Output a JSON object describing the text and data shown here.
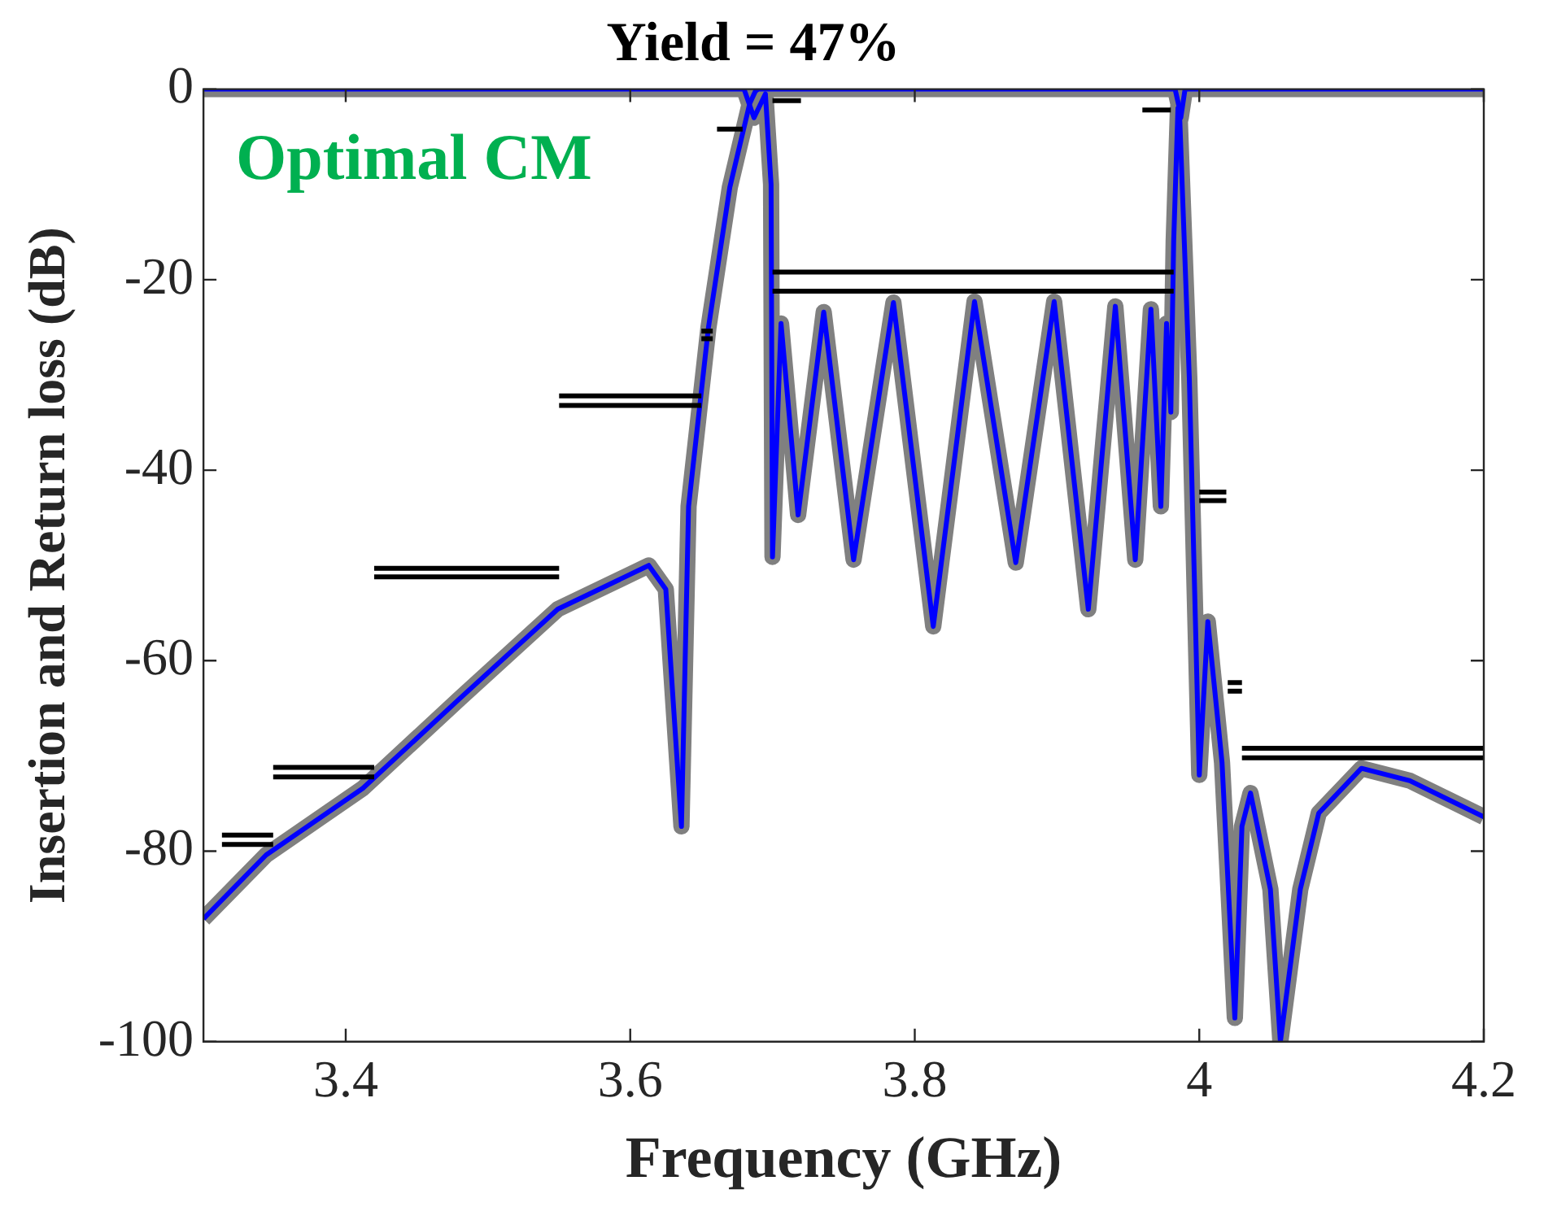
{
  "chart_data": {
    "type": "line",
    "title": "Yield = 47%",
    "xlabel": "Frequency (GHz)",
    "ylabel": "Insertion and Return loss (dB)",
    "annotations": [
      "Optimal CM"
    ],
    "xlim": [
      3.3,
      4.2
    ],
    "xticks": [
      3.4,
      3.6,
      3.8,
      4,
      4.2
    ],
    "ylim": [
      -100,
      0
    ],
    "yticks": [
      0,
      -20,
      -40,
      -60,
      -80,
      -100
    ],
    "grid": false,
    "legend": false,
    "marker": "none",
    "line_style": "solid",
    "series": [
      {
        "color": "#808080",
        "x": [
          3.3,
          3.344,
          3.412,
          3.48,
          3.549,
          3.613,
          3.625,
          3.636,
          3.641,
          3.655,
          3.67,
          3.684,
          3.688,
          3.69,
          3.983,
          3.986,
          3.993,
          4.0,
          4.006,
          4.016,
          4.025,
          4.03,
          4.036,
          4.05,
          4.057,
          4.071,
          4.084,
          4.114,
          4.148,
          4.2
        ],
        "values": [
          -87.1,
          -80.4,
          -73.4,
          -64,
          -54.6,
          -50,
          -52.5,
          -77.4,
          -43.8,
          -25,
          -10.3,
          -1.5,
          -0.2,
          0,
          0,
          -2,
          -30.4,
          -72,
          -55.9,
          -70.7,
          -97.5,
          -77.4,
          -73.9,
          -84,
          -100,
          -84,
          -76,
          -71.3,
          -72.6,
          -76.4
        ]
      },
      {
        "color": "#808080",
        "x": [
          3.3,
          3.68,
          3.687,
          3.695,
          3.699,
          3.7,
          3.706,
          3.718,
          3.736,
          3.757,
          3.785,
          3.813,
          3.842,
          3.871,
          3.898,
          3.922,
          3.941,
          3.955,
          3.966,
          3.973,
          3.977,
          3.98,
          3.982,
          3.985,
          3.987,
          3.99,
          4.2
        ],
        "values": [
          0,
          0,
          -3,
          -0.5,
          -10,
          -49.1,
          -24.6,
          -44.7,
          -23.4,
          -49.4,
          -22.4,
          -56.4,
          -22.3,
          -49.7,
          -22.3,
          -54.6,
          -22.8,
          -49.4,
          -23.1,
          -43.8,
          -24.6,
          -33.9,
          -16,
          -2,
          -3,
          0,
          0
        ]
      },
      {
        "color": "#0000ff",
        "x": [
          3.3,
          3.344,
          3.412,
          3.48,
          3.549,
          3.613,
          3.625,
          3.636,
          3.641,
          3.655,
          3.67,
          3.684,
          3.688,
          3.69,
          3.983,
          3.986,
          3.993,
          4.0,
          4.006,
          4.016,
          4.025,
          4.03,
          4.036,
          4.05,
          4.057,
          4.071,
          4.084,
          4.114,
          4.148,
          4.2
        ],
        "values": [
          -87.1,
          -80.4,
          -73.4,
          -64,
          -54.6,
          -50,
          -52.5,
          -77.4,
          -43.8,
          -25,
          -10.3,
          -1.5,
          -0.2,
          0,
          0,
          -2,
          -30.4,
          -72,
          -55.9,
          -70.7,
          -97.5,
          -77.4,
          -73.9,
          -84,
          -100,
          -84,
          -76,
          -71.3,
          -72.6,
          -76.4
        ]
      },
      {
        "color": "#0000ff",
        "x": [
          3.3,
          3.68,
          3.687,
          3.695,
          3.699,
          3.7,
          3.706,
          3.718,
          3.736,
          3.757,
          3.785,
          3.813,
          3.842,
          3.871,
          3.898,
          3.922,
          3.941,
          3.955,
          3.966,
          3.973,
          3.977,
          3.98,
          3.982,
          3.985,
          3.987,
          3.99,
          4.2
        ],
        "values": [
          0,
          0,
          -3,
          -0.5,
          -10,
          -49.1,
          -24.6,
          -44.7,
          -23.4,
          -49.4,
          -22.4,
          -56.4,
          -22.3,
          -49.7,
          -22.3,
          -54.6,
          -22.8,
          -49.4,
          -23.1,
          -43.8,
          -24.6,
          -33.9,
          -16,
          -2,
          -3,
          0,
          0
        ]
      },
      {
        "color": "#000000",
        "x": [
          3.313,
          3.349
        ],
        "values": [
          -78.3,
          -78.3
        ]
      },
      {
        "color": "#000000",
        "x": [
          3.349,
          3.42
        ],
        "values": [
          -71.2,
          -71.2
        ]
      },
      {
        "color": "#000000",
        "x": [
          3.42,
          3.55
        ],
        "values": [
          -50.3,
          -50.3
        ]
      },
      {
        "color": "#000000",
        "x": [
          3.55,
          3.65
        ],
        "values": [
          -32.2,
          -32.2
        ]
      },
      {
        "color": "#000000",
        "x": [
          3.65,
          3.658
        ],
        "values": [
          -25.4,
          -25.4
        ]
      },
      {
        "color": "#000000",
        "x": [
          3.661,
          3.679
        ],
        "values": [
          -4.2,
          -4.2
        ]
      },
      {
        "color": "#000000",
        "x": [
          3.7,
          3.72
        ],
        "values": [
          -1.2,
          -1.2
        ]
      },
      {
        "color": "#000000",
        "x": [
          3.7,
          3.982
        ],
        "values": [
          -19.2,
          -19.2
        ]
      },
      {
        "color": "#000000",
        "x": [
          3.96,
          3.98
        ],
        "values": [
          -2.2,
          -2.2
        ]
      },
      {
        "color": "#000000",
        "x": [
          4.0,
          4.019
        ],
        "values": [
          -42.3,
          -42.3
        ]
      },
      {
        "color": "#000000",
        "x": [
          4.02,
          4.03
        ],
        "values": [
          -62.3,
          -62.3
        ]
      },
      {
        "color": "#000000",
        "x": [
          4.03,
          4.2
        ],
        "values": [
          -69.2,
          -69.2
        ]
      },
      {
        "color": "#000000",
        "x": [
          3.313,
          3.349
        ],
        "values": [
          -79.3,
          -79.3
        ]
      },
      {
        "color": "#000000",
        "x": [
          3.349,
          3.42
        ],
        "values": [
          -72.2,
          -72.2
        ]
      },
      {
        "color": "#000000",
        "x": [
          3.42,
          3.55
        ],
        "values": [
          -51.2,
          -51.2
        ]
      },
      {
        "color": "#000000",
        "x": [
          3.55,
          3.65
        ],
        "values": [
          -33.2,
          -33.2
        ]
      },
      {
        "color": "#000000",
        "x": [
          3.65,
          3.658
        ],
        "values": [
          -26.2,
          -26.2
        ]
      },
      {
        "color": "#000000",
        "x": [
          3.7,
          3.982
        ],
        "values": [
          -21.2,
          -21.2
        ]
      },
      {
        "color": "#000000",
        "x": [
          4.0,
          4.019
        ],
        "values": [
          -43.2,
          -43.2
        ]
      },
      {
        "color": "#000000",
        "x": [
          4.02,
          4.03
        ],
        "values": [
          -63.2,
          -63.2
        ]
      },
      {
        "color": "#000000",
        "x": [
          4.03,
          4.2
        ],
        "values": [
          -70.2,
          -70.2
        ]
      }
    ]
  }
}
